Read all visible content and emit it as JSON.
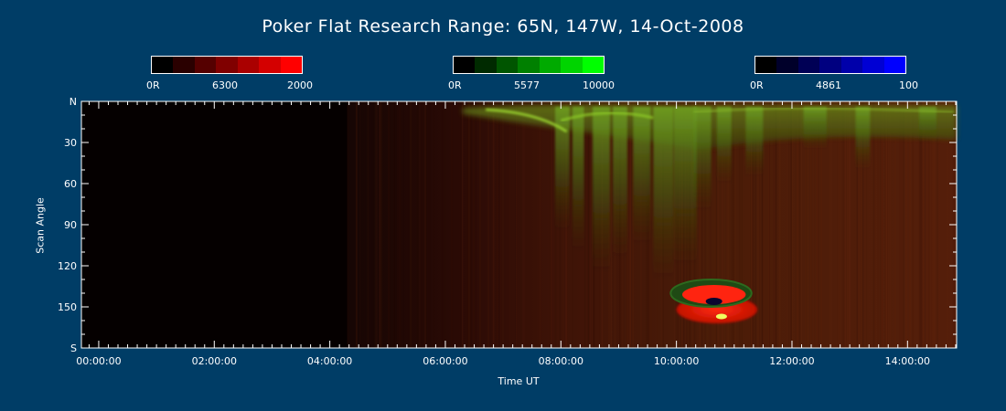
{
  "chart_data": {
    "type": "heatmap",
    "title": "Poker Flat Research Range: 65N, 147W, 14-Oct-2008",
    "xlabel": "Time UT",
    "ylabel": "Scan Angle",
    "x_ticks": [
      "00:00:00",
      "02:00:00",
      "04:00:00",
      "06:00:00",
      "08:00:00",
      "10:00:00",
      "12:00:00",
      "14:00:00"
    ],
    "x_tick_hours": [
      0,
      2,
      4,
      6,
      8,
      10,
      12,
      14
    ],
    "xlim_hours": [
      -0.3,
      14.85
    ],
    "y_ticks": [
      "N",
      "30",
      "60",
      "90",
      "120",
      "150",
      "S"
    ],
    "y_tick_values": [
      0,
      30,
      60,
      90,
      120,
      150,
      180
    ],
    "ylim": [
      0,
      180
    ],
    "grid": false,
    "colorbars": [
      {
        "channel": "6300",
        "min_label": "0R",
        "mid_label": "6300",
        "max_label": "2000",
        "colors": [
          "#000000",
          "#2a0000",
          "#550000",
          "#800000",
          "#aa0000",
          "#d40000",
          "#ff0000"
        ]
      },
      {
        "channel": "5577",
        "min_label": "0R",
        "mid_label": "5577",
        "max_label": "10000",
        "colors": [
          "#000000",
          "#002a00",
          "#005500",
          "#008000",
          "#00aa00",
          "#00d400",
          "#00ff00"
        ]
      },
      {
        "channel": "4861",
        "min_label": "0R",
        "mid_label": "4861",
        "max_label": "100",
        "colors": [
          "#000000",
          "#00002a",
          "#000055",
          "#000080",
          "#0000aa",
          "#0000d4",
          "#0000ff"
        ]
      }
    ],
    "colors": {
      "background": "#003d66",
      "axis": "#ffffff",
      "no_data": "#050000"
    }
  }
}
